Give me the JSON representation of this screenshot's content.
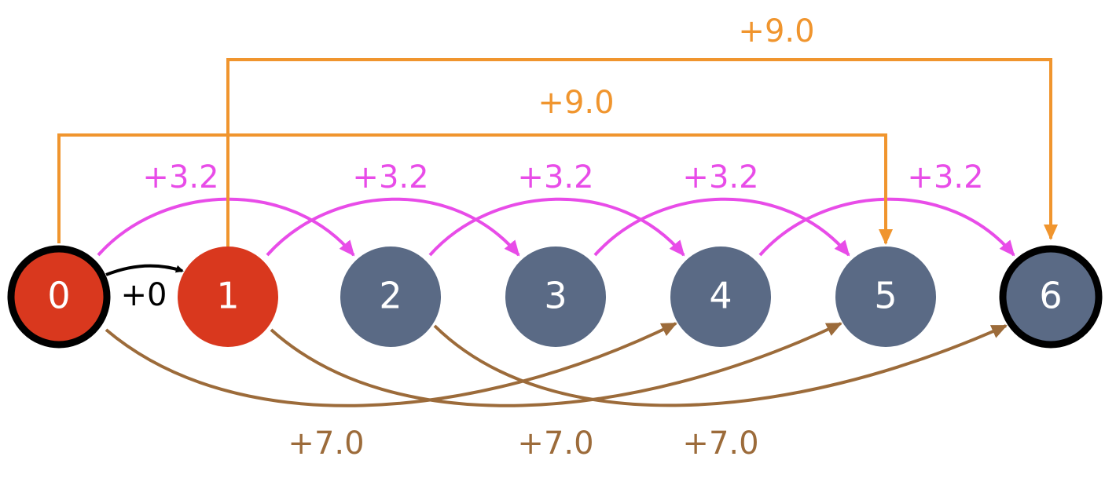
{
  "nodes": [
    {
      "label": "0"
    },
    {
      "label": "1"
    },
    {
      "label": "2"
    },
    {
      "label": "3"
    },
    {
      "label": "4"
    },
    {
      "label": "5"
    },
    {
      "label": "6"
    }
  ],
  "edges": [
    {
      "label": "+0"
    },
    {
      "label": "+3.2"
    },
    {
      "label": "+3.2"
    },
    {
      "label": "+3.2"
    },
    {
      "label": "+3.2"
    },
    {
      "label": "+3.2"
    },
    {
      "label": "+9.0"
    },
    {
      "label": "+9.0"
    },
    {
      "label": "+7.0"
    },
    {
      "label": "+7.0"
    },
    {
      "label": "+7.0"
    }
  ]
}
